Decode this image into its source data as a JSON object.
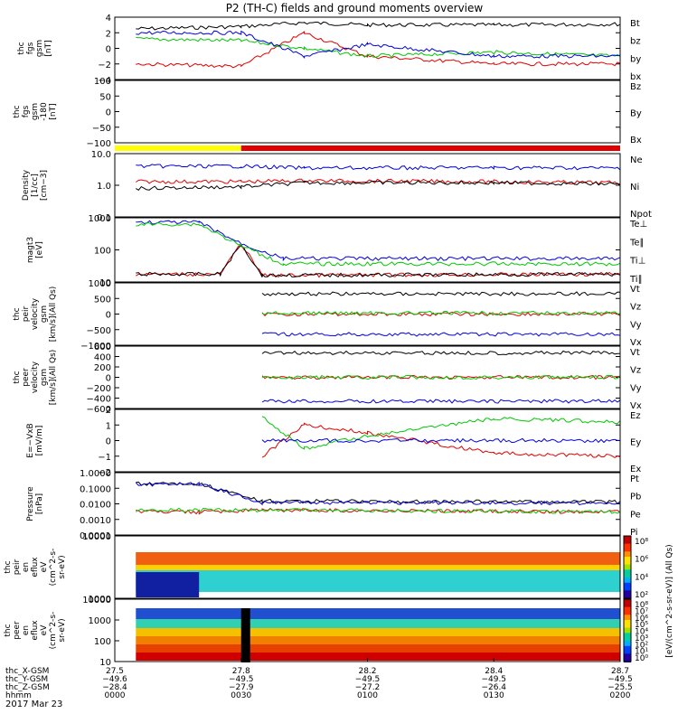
{
  "title": "P2 (TH-C) fields and ground moments overview",
  "date": "2017 Mar 23",
  "colors": {
    "black": "#000000",
    "red": "#e00000",
    "green": "#00c800",
    "blue": "#0000e0",
    "yellow": "#ffff00"
  },
  "panels": [
    {
      "id": "fgs",
      "ylabel": [
        "thc",
        "fgs",
        "gsm",
        "[nT]"
      ],
      "yticks": [
        "4",
        "2",
        "0",
        "−2",
        "−4"
      ],
      "legend": [
        {
          "text": "Bt",
          "color": "black"
        },
        {
          "text": "bz",
          "color": "red"
        },
        {
          "text": "by",
          "color": "green"
        },
        {
          "text": "bx",
          "color": "blue"
        }
      ]
    },
    {
      "id": "fgs_low",
      "ylabel": [
        "thc",
        "fgs",
        "gsm",
        "-180",
        "[nT]"
      ],
      "yticks": [
        "100",
        "50",
        "0",
        "−50",
        "−100"
      ],
      "legend": [
        {
          "text": "Bz",
          "color": "red"
        },
        {
          "text": "By",
          "color": "green"
        },
        {
          "text": "Bx",
          "color": "blue"
        }
      ]
    },
    {
      "id": "density",
      "ylabel": [
        "Density",
        "[1/cc]",
        "[cm−3]"
      ],
      "yticks": [
        "10.0",
        "1.0",
        "0.1"
      ],
      "legend": [
        {
          "text": "Ne",
          "color": "red"
        },
        {
          "text": "Ni",
          "color": "black"
        },
        {
          "text": "Npot",
          "color": "blue"
        }
      ]
    },
    {
      "id": "temp",
      "ylabel": [
        "magt3",
        "[eV]"
      ],
      "yticks": [
        "1000",
        "100",
        "10"
      ],
      "legend": [
        {
          "text": "Te⊥",
          "color": "red"
        },
        {
          "text": "Te∥",
          "color": "black"
        },
        {
          "text": "Ti⊥",
          "color": "blue"
        },
        {
          "text": "Ti∥",
          "color": "green"
        }
      ]
    },
    {
      "id": "peir_vel",
      "ylabel": [
        "thc",
        "peir",
        "velocity",
        "gsm",
        "[km/s](All Qs)"
      ],
      "yticks": [
        "1000",
        "500",
        "0",
        "−500",
        "−1000"
      ],
      "legend": [
        {
          "text": "Vt",
          "color": "black"
        },
        {
          "text": "Vz",
          "color": "red"
        },
        {
          "text": "Vy",
          "color": "green"
        },
        {
          "text": "Vx",
          "color": "blue"
        }
      ]
    },
    {
      "id": "peer_vel",
      "ylabel": [
        "thc",
        "peer",
        "velocity",
        "gsm",
        "[km/s](All Qs)"
      ],
      "yticks": [
        "600",
        "400",
        "200",
        "0",
        "−200",
        "−400",
        "−600"
      ],
      "legend": [
        {
          "text": "Vt",
          "color": "black"
        },
        {
          "text": "Vz",
          "color": "red"
        },
        {
          "text": "Vy",
          "color": "green"
        },
        {
          "text": "Vx",
          "color": "blue"
        }
      ]
    },
    {
      "id": "efield",
      "ylabel": [
        "E=−VxB",
        "[mV/m]"
      ],
      "yticks": [
        "2",
        "1",
        "0",
        "−1",
        "−2"
      ],
      "legend": [
        {
          "text": "Ez",
          "color": "red"
        },
        {
          "text": "Ey",
          "color": "green"
        },
        {
          "text": "Ex",
          "color": "blue"
        }
      ]
    },
    {
      "id": "pressure",
      "ylabel": [
        "Pressure",
        "[nPa]"
      ],
      "yticks": [
        "1.0000",
        "0.1000",
        "0.0100",
        "0.0010",
        "0.0001"
      ],
      "legend": [
        {
          "text": "Pt",
          "color": "black"
        },
        {
          "text": "Pb",
          "color": "red"
        },
        {
          "text": "Pe",
          "color": "green"
        },
        {
          "text": "Pi",
          "color": "blue"
        }
      ]
    },
    {
      "id": "peir_spec",
      "ylabel": [
        "thc",
        "peir",
        "en",
        "eflux",
        "eV",
        "(cm^2-s-",
        "sr-eV)"
      ],
      "yticks": [
        "10000",
        "1000"
      ]
    },
    {
      "id": "peer_spec",
      "ylabel": [
        "thc",
        "peer",
        "en",
        "eflux",
        "eV",
        "(cm^2-s-",
        "sr-eV)"
      ],
      "yticks": [
        "10000",
        "1000",
        "100",
        "10"
      ]
    }
  ],
  "colorbar": {
    "label": "[eV/(cm^2-s-sr-eV)] (All Qs)",
    "top_ticks": [
      "10⁸",
      "10⁶",
      "10⁴",
      "10²"
    ],
    "bottom_ticks": [
      "10⁸",
      "10⁷",
      "10⁶",
      "10⁵",
      "10⁴",
      "10³",
      "10²",
      "10¹",
      "10⁰"
    ]
  },
  "x_axis": {
    "row_labels": [
      "thc_X-GSM",
      "thc_Y-GSM",
      "thc_Z-GSM",
      "hhmm"
    ],
    "ticks": [
      {
        "values": [
          "27.5",
          "−49.6",
          "−28.4",
          "0000"
        ]
      },
      {
        "values": [
          "27.8",
          "−49.5",
          "−27.9",
          "0030"
        ]
      },
      {
        "values": [
          "28.2",
          "−49.5",
          "−27.2",
          "0100"
        ]
      },
      {
        "values": [
          "28.4",
          "−49.5",
          "−26.4",
          "0130"
        ]
      },
      {
        "values": [
          "28.7",
          "−49.5",
          "−25.5",
          "0200"
        ]
      }
    ]
  },
  "chart_data": [
    {
      "type": "line",
      "panel": "fgs",
      "x_unit": "hhmm",
      "xlim": [
        "0000",
        "0200"
      ],
      "ylim": [
        -4,
        4
      ],
      "series": [
        {
          "name": "Bt",
          "x": [
            "0005",
            "0030",
            "0045",
            "0100",
            "0130",
            "0200"
          ],
          "values": [
            2.5,
            2.8,
            3.3,
            3.0,
            3.0,
            3.1
          ]
        },
        {
          "name": "bz",
          "x": [
            "0005",
            "0030",
            "0045",
            "0100",
            "0130",
            "0200"
          ],
          "values": [
            -2.0,
            -2.3,
            2.0,
            -1.0,
            -2.0,
            -2.0
          ]
        },
        {
          "name": "by",
          "x": [
            "0005",
            "0030",
            "0045",
            "0100",
            "0130",
            "0200"
          ],
          "values": [
            1.2,
            1.0,
            0.0,
            -1.0,
            -0.5,
            -1.0
          ]
        },
        {
          "name": "bx",
          "x": [
            "0005",
            "0030",
            "0045",
            "0100",
            "0130",
            "0200"
          ],
          "values": [
            2.0,
            2.0,
            -1.0,
            0.5,
            -1.0,
            -1.0
          ]
        }
      ]
    },
    {
      "type": "line",
      "panel": "density",
      "ylim": [
        0.1,
        10.0
      ],
      "yscale": "log",
      "series": [
        {
          "name": "Ne",
          "x": [
            "0005",
            "0030",
            "0045",
            "0130",
            "0200"
          ],
          "values": [
            1.3,
            1.3,
            1.4,
            1.3,
            1.2
          ]
        },
        {
          "name": "Ni",
          "x": [
            "0005",
            "0030",
            "0045",
            "0130",
            "0200"
          ],
          "values": [
            0.8,
            0.9,
            1.2,
            1.2,
            1.1
          ]
        },
        {
          "name": "Npot",
          "x": [
            "0005",
            "0030",
            "0045",
            "0130",
            "0200"
          ],
          "values": [
            4.0,
            4.0,
            3.5,
            3.6,
            3.5
          ]
        }
      ]
    },
    {
      "type": "line",
      "panel": "temp",
      "ylim": [
        10,
        3000
      ],
      "yscale": "log",
      "series": [
        {
          "name": "Te⊥",
          "x": [
            "0005",
            "0025",
            "0030",
            "0035",
            "0200"
          ],
          "values": [
            20,
            20,
            300,
            18,
            20
          ]
        },
        {
          "name": "Te∥",
          "x": [
            "0005",
            "0025",
            "0030",
            "0035",
            "0200"
          ],
          "values": [
            20,
            20,
            280,
            18,
            20
          ]
        },
        {
          "name": "Ti⊥",
          "x": [
            "0005",
            "0020",
            "0030",
            "0040",
            "0200"
          ],
          "values": [
            2000,
            2000,
            300,
            80,
            80
          ]
        },
        {
          "name": "Ti∥",
          "x": [
            "0005",
            "0020",
            "0030",
            "0040",
            "0200"
          ],
          "values": [
            1700,
            1700,
            250,
            50,
            50
          ]
        }
      ]
    },
    {
      "type": "line",
      "panel": "peir_vel",
      "ylim": [
        -1000,
        1000
      ],
      "series": [
        {
          "name": "Vt",
          "x": [
            "0035",
            "0200"
          ],
          "values": [
            650,
            650
          ]
        },
        {
          "name": "Vz",
          "x": [
            "0035",
            "0200"
          ],
          "values": [
            0,
            0
          ]
        },
        {
          "name": "Vy",
          "x": [
            "0035",
            "0200"
          ],
          "values": [
            30,
            30
          ]
        },
        {
          "name": "Vx",
          "x": [
            "0035",
            "0200"
          ],
          "values": [
            -650,
            -650
          ]
        }
      ]
    },
    {
      "type": "line",
      "panel": "peer_vel",
      "ylim": [
        -600,
        600
      ],
      "series": [
        {
          "name": "Vt",
          "x": [
            "0035",
            "0200"
          ],
          "values": [
            470,
            470
          ]
        },
        {
          "name": "Vz",
          "x": [
            "0035",
            "0200"
          ],
          "values": [
            0,
            0
          ]
        },
        {
          "name": "Vy",
          "x": [
            "0035",
            "0200"
          ],
          "values": [
            0,
            0
          ]
        },
        {
          "name": "Vx",
          "x": [
            "0035",
            "0200"
          ],
          "values": [
            -460,
            -460
          ]
        }
      ]
    },
    {
      "type": "line",
      "panel": "efield",
      "ylim": [
        -2,
        2
      ],
      "series": [
        {
          "name": "Ez",
          "x": [
            "0035",
            "0045",
            "0100",
            "0130",
            "0200"
          ],
          "values": [
            -1.0,
            1.0,
            0.5,
            -0.8,
            -1.0
          ]
        },
        {
          "name": "Ey",
          "x": [
            "0035",
            "0045",
            "0100",
            "0130",
            "0200"
          ],
          "values": [
            1.5,
            -0.5,
            0.3,
            1.4,
            1.2
          ]
        },
        {
          "name": "Ex",
          "x": [
            "0035",
            "0200"
          ],
          "values": [
            0,
            0
          ]
        }
      ]
    },
    {
      "type": "line",
      "panel": "pressure",
      "ylim": [
        0.0001,
        1.0
      ],
      "yscale": "log",
      "series": [
        {
          "name": "Pt",
          "x": [
            "0005",
            "0020",
            "0035",
            "0200"
          ],
          "values": [
            0.2,
            0.2,
            0.015,
            0.013
          ]
        },
        {
          "name": "Pb",
          "x": [
            "0005",
            "0020",
            "0035",
            "0200"
          ],
          "values": [
            0.003,
            0.003,
            0.004,
            0.003
          ]
        },
        {
          "name": "Pe",
          "x": [
            "0005",
            "0035",
            "0200"
          ],
          "values": [
            0.004,
            0.004,
            0.003
          ]
        },
        {
          "name": "Pi",
          "x": [
            "0005",
            "0020",
            "0035",
            "0200"
          ],
          "values": [
            0.18,
            0.18,
            0.012,
            0.011
          ]
        }
      ]
    }
  ]
}
